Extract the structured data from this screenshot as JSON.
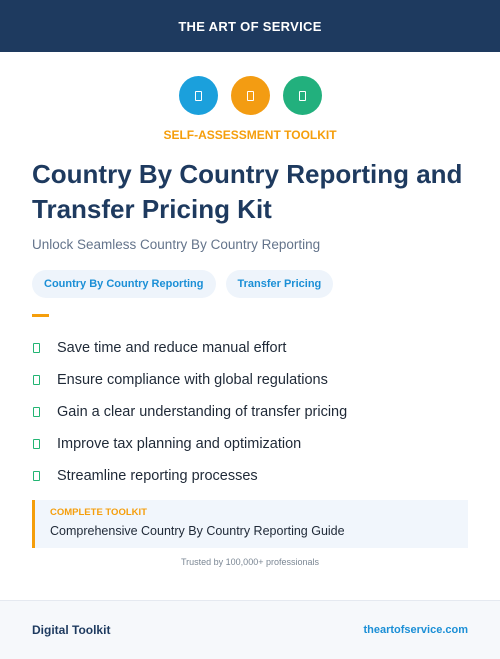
{
  "header": {
    "title": "THE ART OF SERVICE"
  },
  "icons": [
    {
      "name": "document-icon",
      "color": "#1ba0dc"
    },
    {
      "name": "document-icon",
      "color": "#f39c12"
    },
    {
      "name": "document-icon",
      "color": "#22b07d"
    }
  ],
  "eyebrow": "SELF-ASSESSMENT TOOLKIT",
  "title": "Country By Country Reporting and Transfer Pricing Kit",
  "subtitle": "Unlock Seamless Country By Country Reporting",
  "tags": [
    "Country By Country Reporting",
    "Transfer Pricing"
  ],
  "benefits": [
    "Save time and reduce manual effort",
    "Ensure compliance with global regulations",
    "Gain a clear understanding of transfer pricing",
    "Improve tax planning and optimization",
    "Streamline reporting processes"
  ],
  "card": {
    "eyebrow": "COMPLETE TOOLKIT",
    "text": "Comprehensive Country By Country Reporting Guide"
  },
  "trusted": "Trusted by 100,000+ professionals",
  "footer": {
    "left": "Digital Toolkit",
    "right": "theartofservice.com"
  }
}
